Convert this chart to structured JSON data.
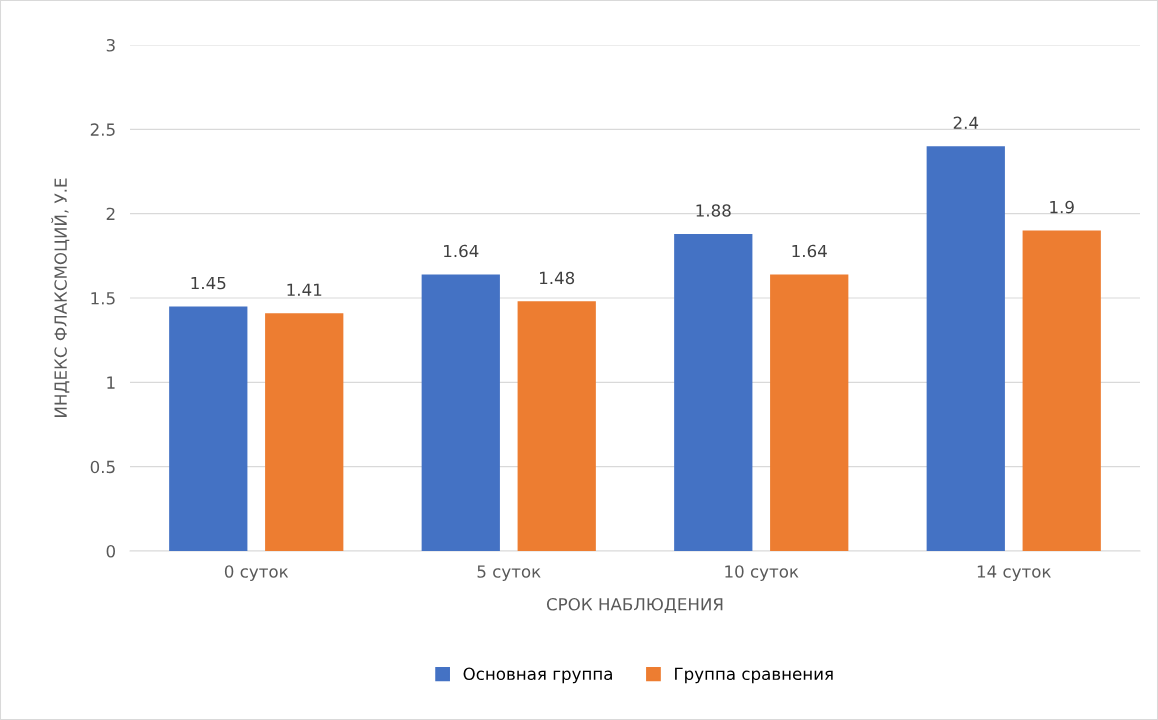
{
  "chart_data": {
    "type": "bar",
    "xlabel": "СРОК НАБЛЮДЕНИЯ",
    "ylabel": "ИНДЕКС ФЛАКСМОЦИЙ, У.Е",
    "categories": [
      "0 суток",
      "5 суток",
      "10 суток",
      "14 суток"
    ],
    "series": [
      {
        "name": "Основная группа",
        "color": "#4472c4",
        "values": [
          1.45,
          1.64,
          1.88,
          2.4
        ]
      },
      {
        "name": "Группа сравнения",
        "color": "#ed7d31",
        "values": [
          1.41,
          1.48,
          1.64,
          1.9
        ]
      }
    ],
    "ylim": [
      0,
      3
    ],
    "yticks": [
      0,
      0.5,
      1,
      1.5,
      2,
      2.5,
      3
    ],
    "grid": "y",
    "legend": "bottom",
    "data_labels": true
  }
}
